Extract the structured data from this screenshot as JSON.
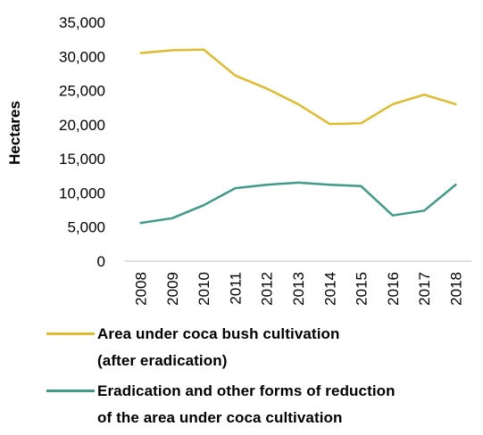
{
  "colors": {
    "series1": "#E0BB2E",
    "series2": "#3E9B8A",
    "axis": "#BFBFBF"
  },
  "chart_data": {
    "type": "line",
    "title": "",
    "xlabel": "",
    "ylabel": "Hectares",
    "x": [
      "2008",
      "2009",
      "2010",
      "2011",
      "2012",
      "2013",
      "2014",
      "2015",
      "2016",
      "2017",
      "2018"
    ],
    "ylim": [
      0,
      35000
    ],
    "yticks": [
      0,
      5000,
      10000,
      15000,
      20000,
      25000,
      30000,
      35000
    ],
    "ytick_labels": [
      "0",
      "5,000",
      "10,000",
      "15,000",
      "20,000",
      "25,000",
      "30,000",
      "35,000"
    ],
    "grid": false,
    "legend_position": "bottom",
    "series": [
      {
        "name_lines": [
          "Area under coca bush cultivation",
          "(after eradication)"
        ],
        "color": "#E0BB2E",
        "values": [
          30500,
          30900,
          31000,
          27200,
          25300,
          23000,
          20100,
          20200,
          23000,
          24400,
          23000
        ]
      },
      {
        "name_lines": [
          "Eradication and other forms of reduction",
          "of the area under coca cultivation"
        ],
        "color": "#3E9B8A",
        "values": [
          5600,
          6300,
          8200,
          10700,
          11200,
          11500,
          11200,
          11000,
          6700,
          7400,
          11200
        ]
      }
    ]
  }
}
